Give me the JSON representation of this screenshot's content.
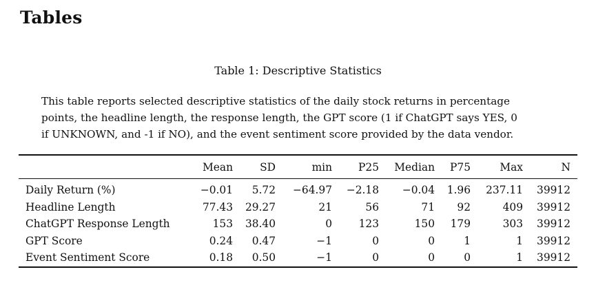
{
  "section": {
    "heading": "Tables"
  },
  "table": {
    "caption": "Table 1: Descriptive Statistics",
    "note": "This table reports selected descriptive statistics of the daily stock returns in percentage points, the headline length, the response length, the GPT score (1 if ChatGPT says YES, 0 if UNKNOWN, and -1 if NO), and the event sentiment score provided by the data vendor.",
    "columns": [
      "",
      "Mean",
      "SD",
      "min",
      "P25",
      "Median",
      "P75",
      "Max",
      "N"
    ],
    "rows": [
      [
        "Daily Return (%)",
        "−0.01",
        "5.72",
        "−64.97",
        "−2.18",
        "−0.04",
        "1.96",
        "237.11",
        "39912"
      ],
      [
        "Headline Length",
        "77.43",
        "29.27",
        "21",
        "56",
        "71",
        "92",
        "409",
        "39912"
      ],
      [
        "ChatGPT Response Length",
        "153",
        "38.40",
        "0",
        "123",
        "150",
        "179",
        "303",
        "39912"
      ],
      [
        "GPT Score",
        "0.24",
        "0.47",
        "−1",
        "0",
        "0",
        "1",
        "1",
        "39912"
      ],
      [
        "Event Sentiment Score",
        "0.18",
        "0.50",
        "−1",
        "0",
        "0",
        "0",
        "1",
        "39912"
      ]
    ]
  }
}
